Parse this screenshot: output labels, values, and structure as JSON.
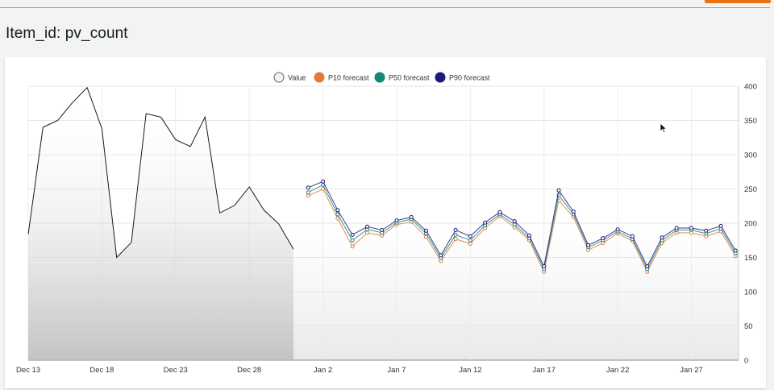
{
  "page": {
    "title": "Item_id: pv_count"
  },
  "colors": {
    "value": "#1a1a1a",
    "p10": "#e07b39",
    "p50": "#13897a",
    "p90": "#1f1a7a",
    "accent": "#ec7211"
  },
  "chart_data": {
    "type": "line",
    "legend_position": "top-center",
    "grid": true,
    "y_axis_side": "right",
    "ylim": [
      0,
      400
    ],
    "y_ticks": [
      "0",
      "50",
      "100",
      "150",
      "200",
      "250",
      "300",
      "350",
      "400"
    ],
    "x_ticks": [
      {
        "label": "Dec 13",
        "day": 0
      },
      {
        "label": "Dec 18",
        "day": 5
      },
      {
        "label": "Dec 23",
        "day": 10
      },
      {
        "label": "Dec 28",
        "day": 15
      },
      {
        "label": "Jan 2",
        "day": 20
      },
      {
        "label": "Jan 7",
        "day": 25
      },
      {
        "label": "Jan 12",
        "day": 30
      },
      {
        "label": "Jan 17",
        "day": 35
      },
      {
        "label": "Jan 22",
        "day": 40
      },
      {
        "label": "Jan 27",
        "day": 45
      }
    ],
    "series": [
      {
        "name": "Value",
        "key": "value",
        "x": [
          0,
          1,
          2,
          3,
          4,
          5,
          6,
          7,
          8,
          9,
          10,
          11,
          12,
          13,
          14,
          15,
          16,
          17,
          18
        ],
        "values": [
          184,
          340,
          350,
          376,
          398,
          338,
          150,
          172,
          360,
          355,
          322,
          312,
          355,
          215,
          226,
          253,
          219,
          199,
          162
        ]
      },
      {
        "name": "P10 forecast",
        "key": "p10",
        "x": [
          19,
          20,
          21,
          22,
          23,
          24,
          25,
          26,
          27,
          28,
          29,
          30,
          31,
          32,
          33,
          34,
          35,
          36,
          37,
          38,
          39,
          40,
          41,
          42,
          43,
          44,
          45,
          46,
          47,
          48
        ],
        "values": [
          240,
          250,
          207,
          166,
          186,
          182,
          198,
          202,
          180,
          145,
          177,
          170,
          193,
          210,
          194,
          175,
          129,
          233,
          209,
          161,
          171,
          185,
          174,
          129,
          171,
          186,
          186,
          181,
          188,
          152
        ]
      },
      {
        "name": "P50 forecast",
        "key": "p50",
        "x": [
          19,
          20,
          21,
          22,
          23,
          24,
          25,
          26,
          27,
          28,
          29,
          30,
          31,
          32,
          33,
          34,
          35,
          36,
          37,
          38,
          39,
          40,
          41,
          42,
          43,
          44,
          45,
          46,
          47,
          48
        ],
        "values": [
          245,
          256,
          213,
          175,
          191,
          186,
          201,
          206,
          185,
          149,
          183,
          175,
          197,
          213,
          198,
          178,
          133,
          241,
          213,
          165,
          175,
          188,
          177,
          133,
          175,
          190,
          190,
          185,
          192,
          156
        ]
      },
      {
        "name": "P90 forecast",
        "key": "p90",
        "x": [
          19,
          20,
          21,
          22,
          23,
          24,
          25,
          26,
          27,
          28,
          29,
          30,
          31,
          32,
          33,
          34,
          35,
          36,
          37,
          38,
          39,
          40,
          41,
          42,
          43,
          44,
          45,
          46,
          47,
          48
        ],
        "values": [
          252,
          261,
          219,
          183,
          195,
          190,
          204,
          209,
          189,
          153,
          190,
          181,
          201,
          216,
          203,
          182,
          137,
          248,
          217,
          168,
          178,
          191,
          181,
          137,
          179,
          193,
          193,
          189,
          196,
          160
        ]
      }
    ]
  }
}
